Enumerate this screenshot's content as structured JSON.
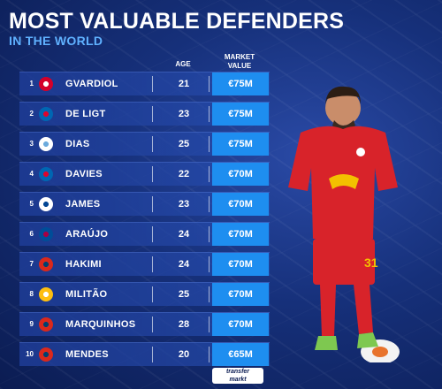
{
  "title": "MOST VALUABLE DEFENDERS",
  "subtitle": "IN THE WORLD",
  "columns": {
    "age": "AGE",
    "market_value_line1": "MARKET",
    "market_value_line2": "VALUE"
  },
  "players": [
    {
      "rank": "1",
      "name": "GVARDIOL",
      "age": "21",
      "value": "€75M",
      "club_icon": "rb-leipzig-crest-icon",
      "crest_colors": [
        "#ffffff",
        "#d4002a"
      ]
    },
    {
      "rank": "2",
      "name": "DE LIGT",
      "age": "23",
      "value": "€75M",
      "club_icon": "bayern-munich-crest-icon",
      "crest_colors": [
        "#dc052d",
        "#0066b2"
      ]
    },
    {
      "rank": "3",
      "name": "DIAS",
      "age": "25",
      "value": "€75M",
      "club_icon": "manchester-city-crest-icon",
      "crest_colors": [
        "#6cabdd",
        "#ffffff"
      ]
    },
    {
      "rank": "4",
      "name": "DAVIES",
      "age": "22",
      "value": "€70M",
      "club_icon": "bayern-munich-crest-icon",
      "crest_colors": [
        "#dc052d",
        "#0066b2"
      ]
    },
    {
      "rank": "5",
      "name": "JAMES",
      "age": "23",
      "value": "€70M",
      "club_icon": "chelsea-crest-icon",
      "crest_colors": [
        "#034694",
        "#ffffff"
      ]
    },
    {
      "rank": "6",
      "name": "ARAÚJO",
      "age": "24",
      "value": "€70M",
      "club_icon": "barcelona-crest-icon",
      "crest_colors": [
        "#a50044",
        "#004d98"
      ]
    },
    {
      "rank": "7",
      "name": "HAKIMI",
      "age": "24",
      "value": "€70M",
      "club_icon": "psg-crest-icon",
      "crest_colors": [
        "#004170",
        "#da291c"
      ]
    },
    {
      "rank": "8",
      "name": "MILITÃO",
      "age": "25",
      "value": "€70M",
      "club_icon": "real-madrid-crest-icon",
      "crest_colors": [
        "#ffffff",
        "#febe10"
      ]
    },
    {
      "rank": "9",
      "name": "MARQUINHOS",
      "age": "28",
      "value": "€70M",
      "club_icon": "psg-crest-icon",
      "crest_colors": [
        "#004170",
        "#da291c"
      ]
    },
    {
      "rank": "10",
      "name": "MENDES",
      "age": "20",
      "value": "€65M",
      "club_icon": "psg-crest-icon",
      "crest_colors": [
        "#004170",
        "#da291c"
      ]
    }
  ],
  "player_image": {
    "icon": "footballer-in-red-kit-icon",
    "kit_color": "#d8232a",
    "shirt_number": "31"
  },
  "brand": {
    "line1": "transfer",
    "line2": "markt"
  },
  "colors": {
    "value_cell": "#1e8ef0",
    "subtitle": "#5fb1ff"
  }
}
